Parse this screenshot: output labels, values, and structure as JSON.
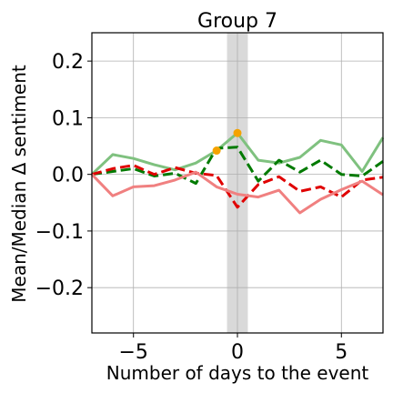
{
  "chart_data": {
    "type": "line",
    "title": "Group 7",
    "xlabel": "Number of days to the event",
    "ylabel": "Mean/Median Δ sentiment",
    "xlim": [
      -7,
      7
    ],
    "ylim": [
      -0.28,
      0.25
    ],
    "xticks": [
      -5,
      0,
      5
    ],
    "xtick_labels": [
      "−5",
      "0",
      "5"
    ],
    "yticks": [
      -0.2,
      -0.1,
      0.0,
      0.1,
      0.2
    ],
    "ytick_labels": [
      "−0.2",
      "−0.1",
      "0.0",
      "0.1",
      "0.2"
    ],
    "grid": true,
    "legend": "none",
    "highlight_band": {
      "x": [
        -0.5,
        0.5
      ],
      "color": "#d9d9d9"
    },
    "x": [
      -7,
      -6,
      -5,
      -4,
      -3,
      -2,
      -1,
      0,
      1,
      2,
      3,
      4,
      5,
      6,
      7
    ],
    "series": [
      {
        "values": [
          0.0,
          0.035,
          0.028,
          0.017,
          0.008,
          0.02,
          0.042,
          0.073,
          0.025,
          0.02,
          0.03,
          0.06,
          0.052,
          0.005,
          0.065
        ],
        "color": "#7fc17f",
        "style": "solid"
      },
      {
        "values": [
          0.0,
          0.005,
          0.01,
          -0.003,
          0.002,
          -0.016,
          0.046,
          0.048,
          -0.012,
          0.025,
          0.004,
          0.025,
          0.0,
          -0.003,
          0.023
        ],
        "color": "#007a00",
        "style": "dashed"
      },
      {
        "values": [
          0.0,
          0.01,
          0.016,
          0.0,
          0.012,
          0.002,
          -0.002,
          -0.058,
          -0.018,
          -0.004,
          -0.03,
          -0.022,
          -0.04,
          -0.01,
          -0.005
        ],
        "color": "#e00000",
        "style": "dashed"
      },
      {
        "values": [
          0.0,
          -0.038,
          -0.022,
          -0.02,
          -0.01,
          0.004,
          -0.022,
          -0.035,
          -0.04,
          -0.028,
          -0.068,
          -0.044,
          -0.027,
          -0.012,
          -0.036
        ],
        "color": "#f08080",
        "style": "solid"
      }
    ],
    "markers": [
      {
        "x": -1,
        "y": 0.042,
        "color": "#f5a300"
      },
      {
        "x": 0,
        "y": 0.073,
        "color": "#f5a300"
      }
    ]
  }
}
